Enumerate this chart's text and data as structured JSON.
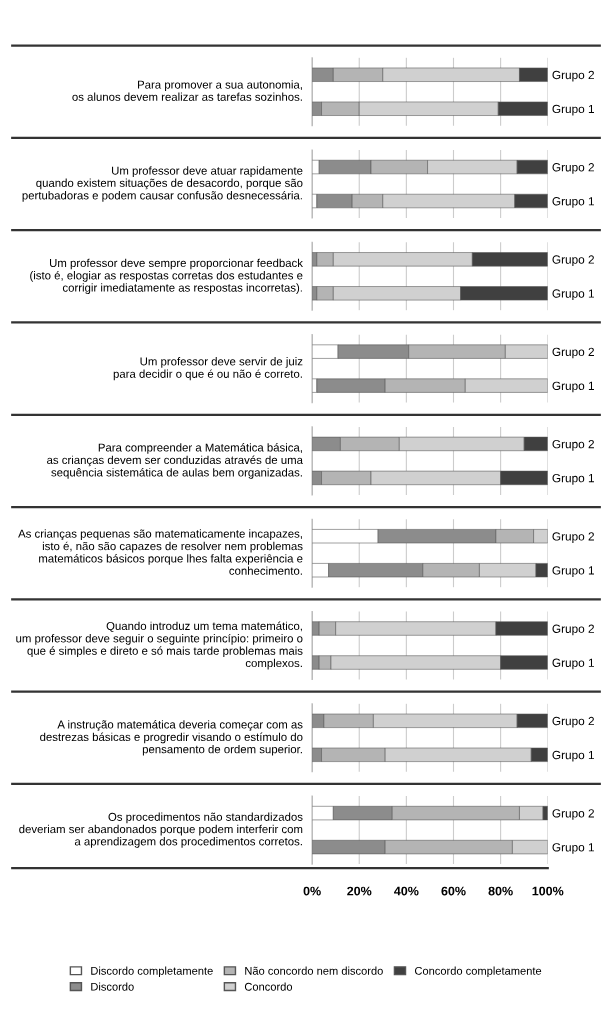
{
  "chart_data": [
    {
      "type": "bar",
      "orientation": "horizontal",
      "stacked": true,
      "title": "Para promover a sua autonomia,\nos alunos devem realizar as tarefas sozinhos.",
      "categories": [
        "Grupo 2",
        "Grupo 1"
      ],
      "xlim": [
        0,
        100
      ],
      "xticks": [
        0,
        20,
        40,
        60,
        80,
        100
      ],
      "tick_labels": "y",
      "grid": "x",
      "series": [
        {
          "color": "#ffffff",
          "values": [
            0,
            0
          ]
        },
        {
          "color": "#8c8c8c",
          "values": [
            9,
            4
          ]
        },
        {
          "color": "#b4b4b4",
          "values": [
            21,
            16
          ]
        },
        {
          "color": "#d0d0d0",
          "values": [
            58,
            59
          ]
        },
        {
          "color": "#404040",
          "values": [
            12,
            21
          ]
        }
      ]
    },
    {
      "type": "bar",
      "orientation": "horizontal",
      "stacked": true,
      "title": "Um professor deve atuar rapidamente\nquando existem situações de desacordo, porque são\npertubadoras e podem causar confusão desnecessária.",
      "categories": [
        "Grupo 2",
        "Grupo 1"
      ],
      "xlim": [
        0,
        100
      ],
      "xticks": [
        0,
        20,
        40,
        60,
        80,
        100
      ],
      "tick_labels": "y",
      "grid": "x",
      "series": [
        {
          "color": "#ffffff",
          "values": [
            3,
            2
          ]
        },
        {
          "color": "#8c8c8c",
          "values": [
            22,
            15
          ]
        },
        {
          "color": "#b4b4b4",
          "values": [
            24,
            13
          ]
        },
        {
          "color": "#d0d0d0",
          "values": [
            38,
            56
          ]
        },
        {
          "color": "#404040",
          "values": [
            13,
            14
          ]
        }
      ]
    },
    {
      "type": "bar",
      "orientation": "horizontal",
      "stacked": true,
      "title": "Um professor deve sempre proporcionar feedback\n(isto é, elogiar as respostas corretas dos estudantes e\ncorrigir imediatamente as respostas incorretas).",
      "categories": [
        "Grupo 2",
        "Grupo 1"
      ],
      "xlim": [
        0,
        100
      ],
      "xticks": [
        0,
        20,
        40,
        60,
        80,
        100
      ],
      "tick_labels": "y",
      "grid": "x",
      "series": [
        {
          "color": "#ffffff",
          "values": [
            0,
            0
          ]
        },
        {
          "color": "#8c8c8c",
          "values": [
            2,
            2
          ]
        },
        {
          "color": "#b4b4b4",
          "values": [
            7,
            7
          ]
        },
        {
          "color": "#d0d0d0",
          "values": [
            59,
            54
          ]
        },
        {
          "color": "#404040",
          "values": [
            32,
            37
          ]
        }
      ]
    },
    {
      "type": "bar",
      "orientation": "horizontal",
      "stacked": true,
      "title": "Um professor deve servir de juiz\npara decidir o que é ou não é correto.",
      "categories": [
        "Grupo 2",
        "Grupo 1"
      ],
      "xlim": [
        0,
        100
      ],
      "xticks": [
        0,
        20,
        40,
        60,
        80,
        100
      ],
      "tick_labels": "y",
      "grid": "x",
      "series": [
        {
          "color": "#ffffff",
          "values": [
            11,
            2
          ]
        },
        {
          "color": "#8c8c8c",
          "values": [
            30,
            29
          ]
        },
        {
          "color": "#b4b4b4",
          "values": [
            41,
            34
          ]
        },
        {
          "color": "#d0d0d0",
          "values": [
            18,
            35
          ]
        },
        {
          "color": "#404040",
          "values": [
            0,
            0
          ]
        }
      ]
    },
    {
      "type": "bar",
      "orientation": "horizontal",
      "stacked": true,
      "title": "Para compreender a Matemática básica,\nas crianças devem ser conduzidas através de uma\nsequência sistemática de aulas bem organizadas.",
      "categories": [
        "Grupo 2",
        "Grupo 1"
      ],
      "xlim": [
        0,
        100
      ],
      "xticks": [
        0,
        20,
        40,
        60,
        80,
        100
      ],
      "tick_labels": "y",
      "grid": "x",
      "series": [
        {
          "color": "#ffffff",
          "values": [
            0,
            0
          ]
        },
        {
          "color": "#8c8c8c",
          "values": [
            12,
            4
          ]
        },
        {
          "color": "#b4b4b4",
          "values": [
            25,
            21
          ]
        },
        {
          "color": "#d0d0d0",
          "values": [
            53,
            55
          ]
        },
        {
          "color": "#404040",
          "values": [
            10,
            20
          ]
        }
      ]
    },
    {
      "type": "bar",
      "orientation": "horizontal",
      "stacked": true,
      "title": "As crianças pequenas são matematicamente incapazes,\nisto é, não são capazes de resolver nem problemas\nmatemáticos básicos porque lhes falta experiência e\nconhecimento.",
      "categories": [
        "Grupo 2",
        "Grupo 1"
      ],
      "xlim": [
        0,
        100
      ],
      "xticks": [
        0,
        20,
        40,
        60,
        80,
        100
      ],
      "tick_labels": "y",
      "grid": "x",
      "series": [
        {
          "color": "#ffffff",
          "values": [
            28,
            7
          ]
        },
        {
          "color": "#8c8c8c",
          "values": [
            50,
            40
          ]
        },
        {
          "color": "#b4b4b4",
          "values": [
            16,
            24
          ]
        },
        {
          "color": "#d0d0d0",
          "values": [
            6,
            24
          ]
        },
        {
          "color": "#404040",
          "values": [
            0,
            5
          ]
        }
      ]
    },
    {
      "type": "bar",
      "orientation": "horizontal",
      "stacked": true,
      "title": "Quando introduz um tema matemático,\num professor deve seguir o seguinte princípio: primeiro o\nque é simples e direto e só mais tarde problemas mais\ncomplexos.",
      "categories": [
        "Grupo 2",
        "Grupo 1"
      ],
      "xlim": [
        0,
        100
      ],
      "xticks": [
        0,
        20,
        40,
        60,
        80,
        100
      ],
      "tick_labels": "y",
      "grid": "x",
      "series": [
        {
          "color": "#ffffff",
          "values": [
            0,
            0
          ]
        },
        {
          "color": "#8c8c8c",
          "values": [
            3,
            3
          ]
        },
        {
          "color": "#b4b4b4",
          "values": [
            7,
            5
          ]
        },
        {
          "color": "#d0d0d0",
          "values": [
            68,
            72
          ]
        },
        {
          "color": "#404040",
          "values": [
            22,
            20
          ]
        }
      ]
    },
    {
      "type": "bar",
      "orientation": "horizontal",
      "stacked": true,
      "title": "A instrução matemática deveria começar com as\ndestrezas básicas e progredir visando o estímulo do\npensamento de ordem superior.",
      "categories": [
        "Grupo 2",
        "Grupo 1"
      ],
      "xlim": [
        0,
        100
      ],
      "xticks": [
        0,
        20,
        40,
        60,
        80,
        100
      ],
      "tick_labels": "y",
      "grid": "x",
      "series": [
        {
          "color": "#ffffff",
          "values": [
            0,
            0
          ]
        },
        {
          "color": "#8c8c8c",
          "values": [
            5,
            4
          ]
        },
        {
          "color": "#b4b4b4",
          "values": [
            21,
            27
          ]
        },
        {
          "color": "#d0d0d0",
          "values": [
            61,
            62
          ]
        },
        {
          "color": "#404040",
          "values": [
            13,
            7
          ]
        }
      ]
    },
    {
      "type": "bar",
      "orientation": "horizontal",
      "stacked": true,
      "title": "Os procedimentos não standardizados\ndeveriam ser abandonados porque podem interferir com\na aprendizagem dos procedimentos corretos.",
      "categories": [
        "Grupo 2",
        "Grupo 1"
      ],
      "xlim": [
        0,
        100
      ],
      "xticks": [
        {
          "value": 0,
          "label": "0%"
        },
        {
          "value": 20,
          "label": "20%"
        },
        {
          "value": 40,
          "label": "40%"
        },
        {
          "value": 60,
          "label": "60%"
        },
        {
          "value": 80,
          "label": "80%"
        },
        {
          "value": 100,
          "label": "100%"
        }
      ],
      "grid": "x",
      "legend": "bottom",
      "series": [
        {
          "name": "Discordo completamente",
          "color": "#ffffff",
          "values": [
            9,
            0
          ]
        },
        {
          "name": "Discordo",
          "color": "#8c8c8c",
          "values": [
            25,
            31
          ]
        },
        {
          "name": "Não concordo nem discordo",
          "color": "#b4b4b4",
          "values": [
            54,
            54
          ]
        },
        {
          "name": "Concordo",
          "color": "#d0d0d0",
          "values": [
            10,
            15
          ]
        },
        {
          "name": "Concordo completamente",
          "color": "#404040",
          "values": [
            2,
            0
          ]
        }
      ]
    }
  ]
}
